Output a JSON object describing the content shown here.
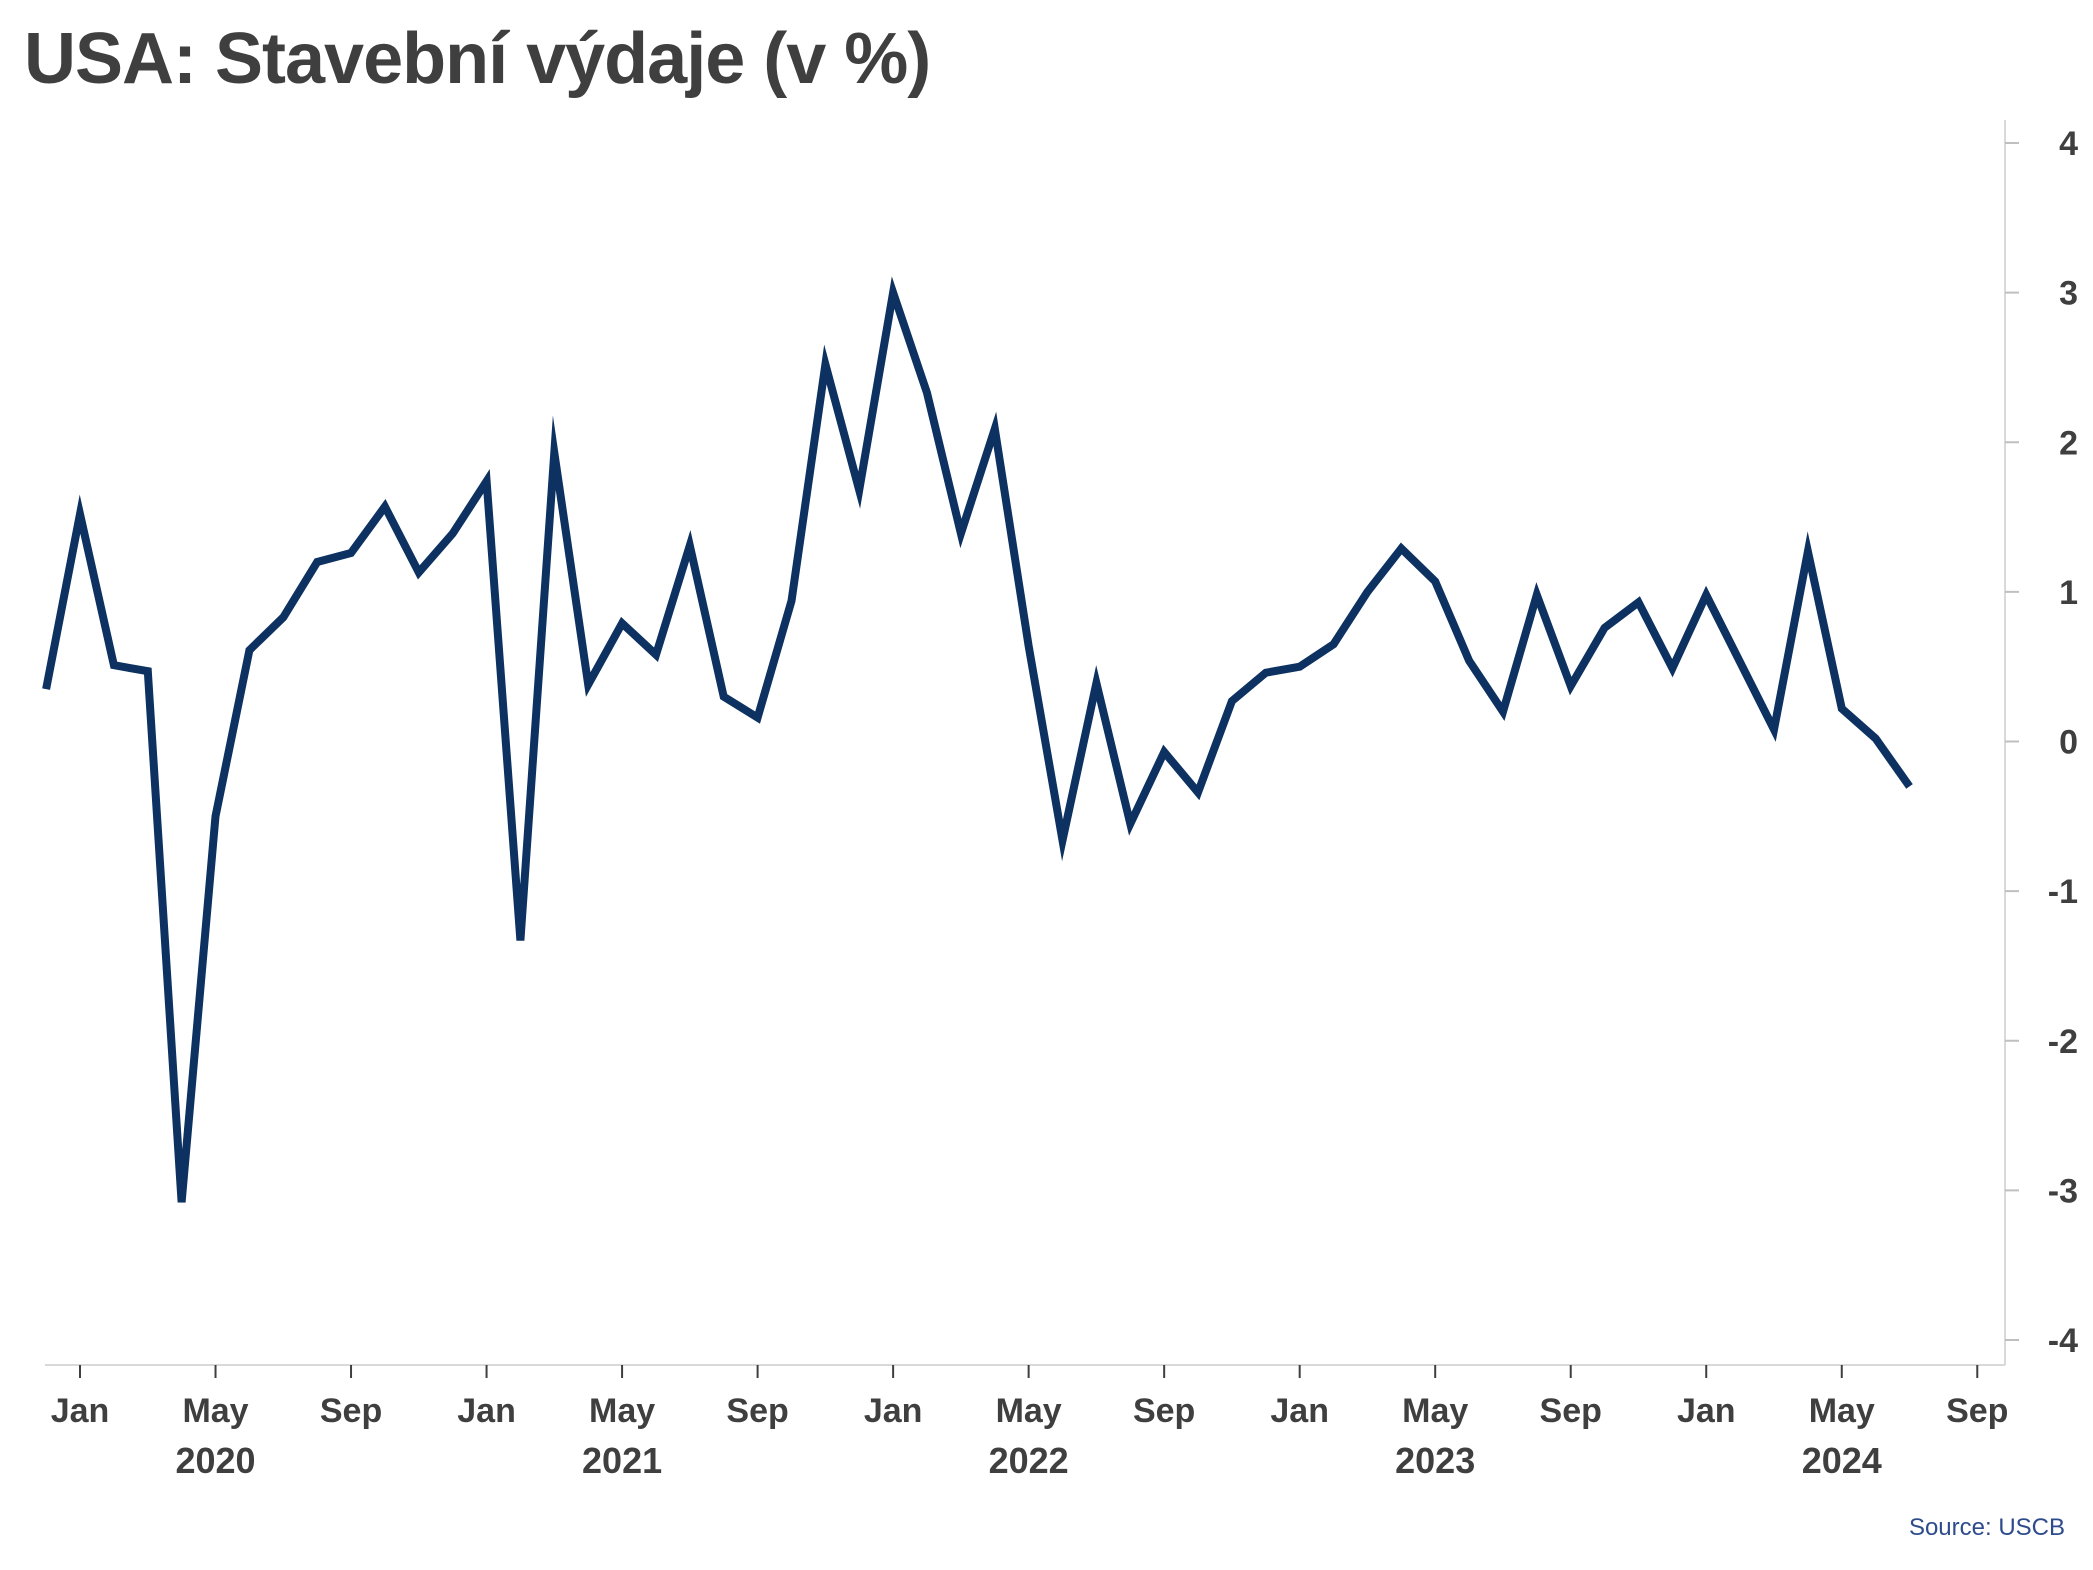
{
  "title": "USA: Stavební výdaje (v %)",
  "source": "Source: USCB",
  "colors": {
    "line": "#0d3160",
    "text": "#3f3f3f",
    "axis": "#d9d9d9",
    "source": "#2e4c8c"
  },
  "chart_data": {
    "type": "line",
    "title": "USA: Stavební výdaje (v %)",
    "xlabel": "",
    "ylabel": "",
    "ylim": [
      -4,
      4
    ],
    "yticks": [
      "4",
      "3",
      "2",
      "1",
      "0",
      "-1",
      "-2",
      "-3",
      "-4"
    ],
    "y_axis_side": "right",
    "grid": false,
    "legend": "none",
    "x_tick_labels": [
      "Jan",
      "May",
      "Sep",
      "Jan",
      "May",
      "Sep",
      "Jan",
      "May",
      "Sep",
      "Jan",
      "May",
      "Sep",
      "Jan",
      "May",
      "Sep"
    ],
    "year_labels": [
      "2020",
      "2021",
      "2022",
      "2023",
      "2024"
    ],
    "x_start": "2019-12",
    "x_end": "2024-07",
    "series": [
      {
        "name": "",
        "x": [
          "2019-12",
          "2020-01",
          "2020-02",
          "2020-03",
          "2020-04",
          "2020-05",
          "2020-06",
          "2020-07",
          "2020-08",
          "2020-09",
          "2020-10",
          "2020-11",
          "2020-12",
          "2021-01",
          "2021-02",
          "2021-03",
          "2021-04",
          "2021-05",
          "2021-06",
          "2021-07",
          "2021-08",
          "2021-09",
          "2021-10",
          "2021-11",
          "2021-12",
          "2022-01",
          "2022-02",
          "2022-03",
          "2022-04",
          "2022-05",
          "2022-06",
          "2022-07",
          "2022-08",
          "2022-09",
          "2022-10",
          "2022-11",
          "2022-12",
          "2023-01",
          "2023-02",
          "2023-03",
          "2023-04",
          "2023-05",
          "2023-06",
          "2023-07",
          "2023-08",
          "2023-09",
          "2023-10",
          "2023-11",
          "2023-12",
          "2024-01",
          "2024-02",
          "2024-03",
          "2024-04",
          "2024-05",
          "2024-06",
          "2024-07"
        ],
        "values": [
          0.35,
          1.52,
          0.51,
          0.47,
          -3.08,
          -0.5,
          0.61,
          0.83,
          1.2,
          1.26,
          1.57,
          1.13,
          1.39,
          1.74,
          -1.33,
          1.93,
          0.38,
          0.79,
          0.58,
          1.31,
          0.3,
          0.16,
          0.94,
          2.52,
          1.68,
          3.0,
          2.33,
          1.39,
          2.09,
          0.64,
          -0.66,
          0.39,
          -0.55,
          -0.07,
          -0.34,
          0.27,
          0.46,
          0.5,
          0.65,
          1.0,
          1.29,
          1.07,
          0.54,
          0.2,
          0.98,
          0.37,
          0.76,
          0.93,
          0.49,
          0.98,
          0.53,
          0.08,
          1.27,
          0.22,
          0.02,
          -0.3
        ]
      }
    ]
  }
}
